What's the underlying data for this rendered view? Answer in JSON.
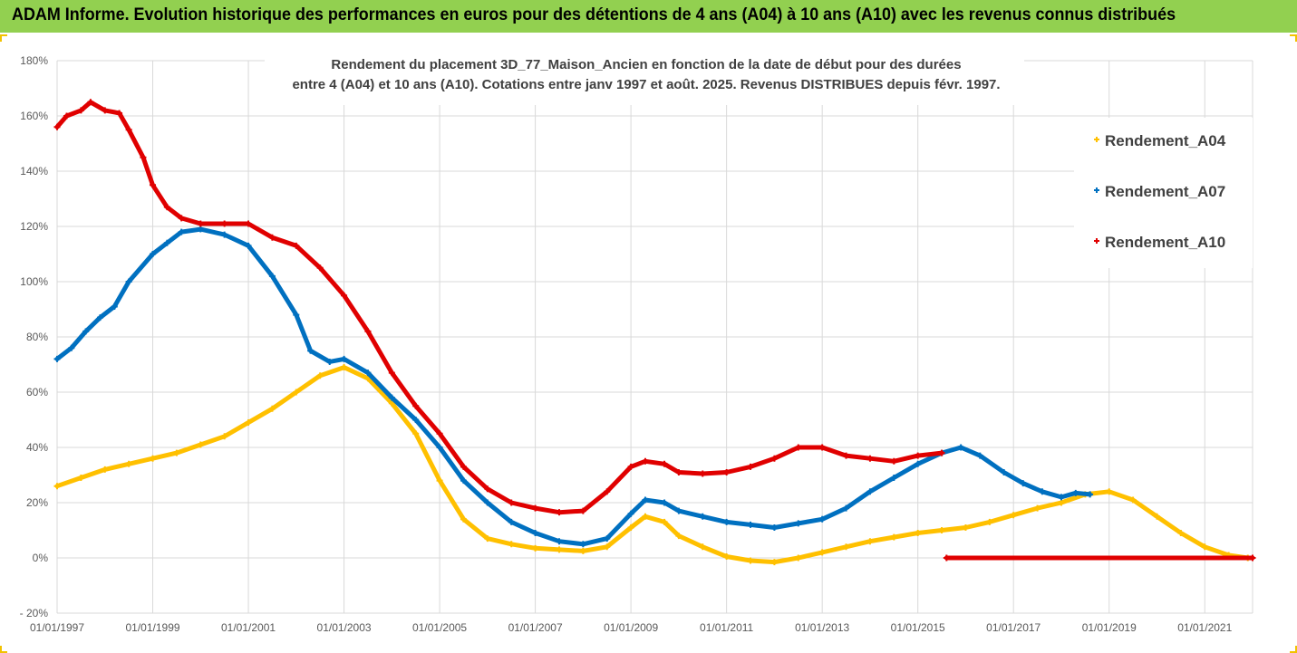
{
  "header": {
    "text": "ADAM Informe. Evolution historique des performances en euros pour des détentions de 4 ans (A04) à 10 ans (A10) avec les revenus connus distribués"
  },
  "colors": {
    "header_bg": "#92d050",
    "A04": "#ffc000",
    "A07": "#0070c0",
    "A10": "#e00000",
    "grid": "#d9d9d9"
  },
  "chart_data": {
    "type": "scatter",
    "title_lines": [
      "Rendement du placement 3D_77_Maison_Ancien en fonction de la date de début pour des durées",
      "entre 4 (A04) et 10 ans (A10). Cotations entre janv 1997 et août. 2025. Revenus DISTRIBUES depuis févr. 1997."
    ],
    "x_ticks": [
      "01/01/1997",
      "01/01/1999",
      "01/01/2001",
      "01/01/2003",
      "01/01/2005",
      "01/01/2007",
      "01/01/2009",
      "01/01/2011",
      "01/01/2013",
      "01/01/2015",
      "01/01/2017",
      "01/01/2019",
      "01/01/2021"
    ],
    "y_ticks": [
      "180%",
      "160%",
      "140%",
      "120%",
      "100%",
      "80%",
      "60%",
      "40%",
      "20%",
      "0%",
      "- 20%"
    ],
    "xlim": [
      1997.0,
      2022.0
    ],
    "ylim": [
      -20,
      180
    ],
    "grid": true,
    "legend_position": "right",
    "series": [
      {
        "name": "Rendement_A04",
        "color": "#ffc000",
        "points": [
          [
            1997.0,
            26
          ],
          [
            1997.5,
            29
          ],
          [
            1998.0,
            32
          ],
          [
            1998.5,
            34
          ],
          [
            1999.0,
            36
          ],
          [
            1999.5,
            38
          ],
          [
            2000.0,
            41
          ],
          [
            2000.5,
            44
          ],
          [
            2001.0,
            49
          ],
          [
            2001.5,
            54
          ],
          [
            2002.0,
            60
          ],
          [
            2002.5,
            66
          ],
          [
            2003.0,
            69
          ],
          [
            2003.5,
            65
          ],
          [
            2004.0,
            56
          ],
          [
            2004.5,
            45
          ],
          [
            2005.0,
            28
          ],
          [
            2005.5,
            14
          ],
          [
            2006.0,
            7
          ],
          [
            2006.5,
            5
          ],
          [
            2007.0,
            3.5
          ],
          [
            2007.5,
            3
          ],
          [
            2008.0,
            2.5
          ],
          [
            2008.5,
            4
          ],
          [
            2009.0,
            11
          ],
          [
            2009.3,
            15
          ],
          [
            2009.7,
            13
          ],
          [
            2010.0,
            8
          ],
          [
            2010.5,
            4
          ],
          [
            2011.0,
            0.5
          ],
          [
            2011.5,
            -1
          ],
          [
            2012.0,
            -1.5
          ],
          [
            2012.5,
            0
          ],
          [
            2013.0,
            2
          ],
          [
            2013.5,
            4
          ],
          [
            2014.0,
            6
          ],
          [
            2014.5,
            7.5
          ],
          [
            2015.0,
            9
          ],
          [
            2015.5,
            10
          ],
          [
            2016.0,
            11
          ],
          [
            2016.5,
            13
          ],
          [
            2017.0,
            15.5
          ],
          [
            2017.5,
            18
          ],
          [
            2018.0,
            20
          ],
          [
            2018.5,
            23
          ],
          [
            2019.0,
            24
          ],
          [
            2019.5,
            21
          ],
          [
            2020.0,
            15
          ],
          [
            2020.5,
            9
          ],
          [
            2021.0,
            4
          ],
          [
            2021.5,
            1
          ],
          [
            2021.9,
            0
          ]
        ]
      },
      {
        "name": "Rendement_A07",
        "color": "#0070c0",
        "points": [
          [
            1997.0,
            72
          ],
          [
            1997.3,
            76
          ],
          [
            1997.6,
            82
          ],
          [
            1997.9,
            87
          ],
          [
            1998.2,
            91
          ],
          [
            1998.5,
            100
          ],
          [
            1999.0,
            110
          ],
          [
            1999.3,
            114
          ],
          [
            1999.6,
            118
          ],
          [
            2000.0,
            119
          ],
          [
            2000.5,
            117
          ],
          [
            2001.0,
            113
          ],
          [
            2001.5,
            102
          ],
          [
            2002.0,
            88
          ],
          [
            2002.3,
            75
          ],
          [
            2002.7,
            71
          ],
          [
            2003.0,
            72
          ],
          [
            2003.5,
            67
          ],
          [
            2004.0,
            58
          ],
          [
            2004.5,
            50
          ],
          [
            2005.0,
            40
          ],
          [
            2005.5,
            28
          ],
          [
            2006.0,
            20
          ],
          [
            2006.5,
            13
          ],
          [
            2007.0,
            9
          ],
          [
            2007.5,
            6
          ],
          [
            2008.0,
            5
          ],
          [
            2008.5,
            7
          ],
          [
            2009.0,
            16
          ],
          [
            2009.3,
            21
          ],
          [
            2009.7,
            20
          ],
          [
            2010.0,
            17
          ],
          [
            2010.5,
            15
          ],
          [
            2011.0,
            13
          ],
          [
            2011.5,
            12
          ],
          [
            2012.0,
            11
          ],
          [
            2012.5,
            12.5
          ],
          [
            2013.0,
            14
          ],
          [
            2013.5,
            18
          ],
          [
            2014.0,
            24
          ],
          [
            2014.5,
            29
          ],
          [
            2015.0,
            34
          ],
          [
            2015.5,
            38
          ],
          [
            2015.9,
            40
          ],
          [
            2016.3,
            37
          ],
          [
            2016.8,
            31
          ],
          [
            2017.2,
            27
          ],
          [
            2017.6,
            24
          ],
          [
            2018.0,
            22
          ],
          [
            2018.3,
            23.5
          ],
          [
            2018.6,
            23
          ]
        ]
      },
      {
        "name": "Rendement_A10",
        "color": "#e00000",
        "points": [
          [
            1997.0,
            156
          ],
          [
            1997.2,
            160
          ],
          [
            1997.5,
            162
          ],
          [
            1997.7,
            165
          ],
          [
            1998.0,
            162
          ],
          [
            1998.3,
            161
          ],
          [
            1998.5,
            155
          ],
          [
            1998.8,
            145
          ],
          [
            1999.0,
            135
          ],
          [
            1999.3,
            127
          ],
          [
            1999.6,
            123
          ],
          [
            2000.0,
            121
          ],
          [
            2000.5,
            121
          ],
          [
            2001.0,
            121
          ],
          [
            2001.5,
            116
          ],
          [
            2002.0,
            113
          ],
          [
            2002.5,
            105
          ],
          [
            2003.0,
            95
          ],
          [
            2003.5,
            82
          ],
          [
            2004.0,
            67
          ],
          [
            2004.5,
            55
          ],
          [
            2005.0,
            45
          ],
          [
            2005.5,
            33
          ],
          [
            2006.0,
            25
          ],
          [
            2006.5,
            20
          ],
          [
            2007.0,
            18
          ],
          [
            2007.5,
            16.5
          ],
          [
            2008.0,
            17
          ],
          [
            2008.5,
            24
          ],
          [
            2009.0,
            33
          ],
          [
            2009.3,
            35
          ],
          [
            2009.7,
            34
          ],
          [
            2010.0,
            31
          ],
          [
            2010.5,
            30.5
          ],
          [
            2011.0,
            31
          ],
          [
            2011.5,
            33
          ],
          [
            2012.0,
            36
          ],
          [
            2012.5,
            40
          ],
          [
            2013.0,
            40
          ],
          [
            2013.5,
            37
          ],
          [
            2014.0,
            36
          ],
          [
            2014.5,
            35
          ],
          [
            2015.0,
            37
          ],
          [
            2015.5,
            38
          ]
        ]
      },
      {
        "name": "Rendement_A10",
        "color": "#e00000",
        "points": [
          [
            2015.6,
            0
          ],
          [
            2022.0,
            0
          ]
        ]
      }
    ]
  }
}
